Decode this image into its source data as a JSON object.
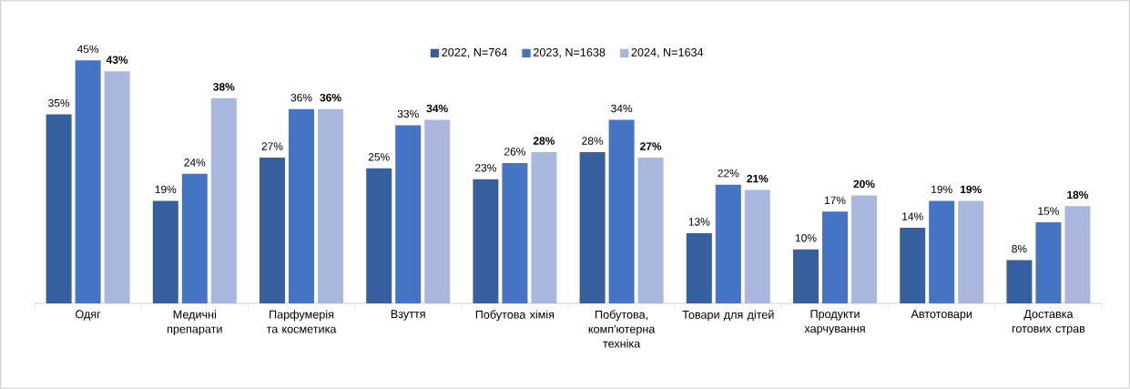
{
  "chart_data": {
    "type": "bar",
    "categories": [
      "Одяг",
      "Медичні препарати",
      "Парфумерія та косметика",
      "Взуття",
      "Побутова хімія",
      "Побутова, комп'ютерна техніка",
      "Товари для дітей",
      "Продукти харчування",
      "Автотовари",
      "Доставка готових страв"
    ],
    "series": [
      {
        "name": "2022, N=764",
        "color": "#365f9f",
        "values": [
          35,
          19,
          27,
          25,
          23,
          28,
          13,
          10,
          14,
          8
        ],
        "value_labels": [
          "35%",
          "19%",
          "27%",
          "25%",
          "23%",
          "28%",
          "13%",
          "10%",
          "14%",
          "8%"
        ]
      },
      {
        "name": "2023, N=1638",
        "color": "#4674c5",
        "values": [
          45,
          24,
          36,
          33,
          26,
          34,
          22,
          17,
          19,
          15
        ],
        "value_labels": [
          "45%",
          "24%",
          "36%",
          "33%",
          "26%",
          "34%",
          "22%",
          "17%",
          "19%",
          "15%"
        ]
      },
      {
        "name": "2024, N=1634",
        "color": "#a9b7de",
        "values": [
          43,
          38,
          36,
          34,
          28,
          27,
          21,
          20,
          19,
          18
        ],
        "value_labels": [
          "**43%**",
          "**38%**",
          "**36%**",
          "**34%**",
          "**28%**",
          "**27%**",
          "**21%**",
          "**20%**",
          "**19%**",
          "**18%**"
        ]
      }
    ],
    "legend": "top"
  }
}
